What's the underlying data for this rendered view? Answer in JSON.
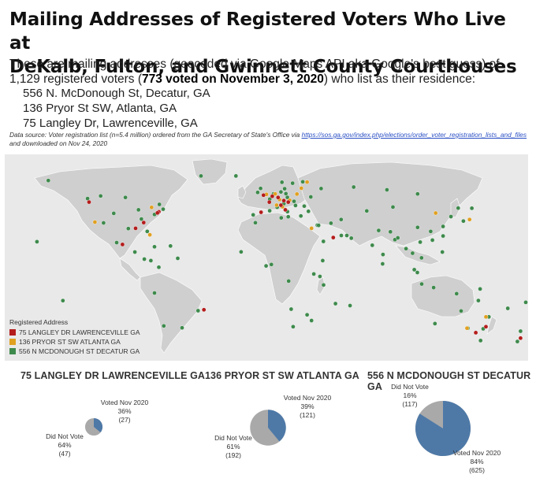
{
  "header": {
    "title_line1": "Mailing Addresses of Registered Voters Who Live at",
    "title_line2": "DeKalb, Fulton, and Gwinnett County Courthouses",
    "sub_pre": "These are mailing addresses (geocoded via Google Maps API aka Google's best guess) of 1,129 registered voters (",
    "sub_bold": "773 voted on November 3, 2020",
    "sub_post": ") who list as their residence:",
    "addresses": [
      "556 N. McDonough St, Decatur, GA",
      "136 Pryor St SW, Atlanta, GA",
      "75 Langley Dr, Lawrenceville, GA"
    ],
    "source_pre": "Data source: Voter registration list (n=5.4 million) ordered from the GA Secretary of State's Office via ",
    "source_link": "https://sos.ga.gov/index.php/elections/order_voter_registration_lists_and_files",
    "source_post": " and downloaded on Nov 24, 2020"
  },
  "legend": {
    "title": "Registered Address",
    "items": [
      {
        "label": "75 LANGLEY DR LAWRENCEVILLE GA",
        "color": "#b41c1c"
      },
      {
        "label": "136 PRYOR ST SW ATLANTA GA",
        "color": "#e0a020"
      },
      {
        "label": "556 N MCDONOUGH ST DECATUR GA",
        "color": "#3e8a4c"
      }
    ]
  },
  "colors": {
    "land": "#cfcfcf",
    "ocean": "#e9e9e9",
    "voted": "#4e79a7",
    "did_not_vote": "#a9a9a9"
  },
  "map_points": [
    {
      "group": "lawrenceville",
      "lon": -74,
      "lat": 40.7
    },
    {
      "group": "lawrenceville",
      "lon": -75,
      "lat": 40
    },
    {
      "group": "lawrenceville",
      "lon": -122,
      "lat": 47
    },
    {
      "group": "lawrenceville",
      "lon": -84.4,
      "lat": 33.7
    },
    {
      "group": "lawrenceville",
      "lon": -90,
      "lat": 30
    },
    {
      "group": "lawrenceville",
      "lon": -99,
      "lat": 19.5
    },
    {
      "group": "lawrenceville",
      "lon": -2,
      "lat": 51.5
    },
    {
      "group": "lawrenceville",
      "lon": 4,
      "lat": 50.8
    },
    {
      "group": "lawrenceville",
      "lon": 8,
      "lat": 50
    },
    {
      "group": "lawrenceville",
      "lon": 12,
      "lat": 48
    },
    {
      "group": "lawrenceville",
      "lon": 2,
      "lat": 47
    },
    {
      "group": "lawrenceville",
      "lon": 13,
      "lat": 42
    },
    {
      "group": "lawrenceville",
      "lon": 10,
      "lat": 45
    },
    {
      "group": "lawrenceville",
      "lon": 15,
      "lat": 47
    },
    {
      "group": "lawrenceville",
      "lon": -3.7,
      "lat": 40.4
    },
    {
      "group": "lawrenceville",
      "lon": 46,
      "lat": 24
    },
    {
      "group": "lawrenceville",
      "lon": -43,
      "lat": -22.9
    },
    {
      "group": "lawrenceville",
      "lon": 151,
      "lat": -33.9
    },
    {
      "group": "lawrenceville",
      "lon": 144,
      "lat": -37.8
    },
    {
      "group": "lawrenceville",
      "lon": 174.8,
      "lat": -41.3
    },
    {
      "group": "pryor",
      "lon": -79,
      "lat": 43.6
    },
    {
      "group": "pryor",
      "lon": -118,
      "lat": 34
    },
    {
      "group": "pryor",
      "lon": -80.2,
      "lat": 25.8
    },
    {
      "group": "pryor",
      "lon": 0,
      "lat": 52
    },
    {
      "group": "pryor",
      "lon": 6,
      "lat": 52.3
    },
    {
      "group": "pryor",
      "lon": 16,
      "lat": 48.2
    },
    {
      "group": "pryor",
      "lon": 9,
      "lat": 48.7
    },
    {
      "group": "pryor",
      "lon": 21,
      "lat": 52.2
    },
    {
      "group": "pryor",
      "lon": 24,
      "lat": 56
    },
    {
      "group": "pryor",
      "lon": 28,
      "lat": 60
    },
    {
      "group": "pryor",
      "lon": 11,
      "lat": 44
    },
    {
      "group": "pryor",
      "lon": 7,
      "lat": 45
    },
    {
      "group": "pryor",
      "lon": 31,
      "lat": 30
    },
    {
      "group": "pryor",
      "lon": 139.7,
      "lat": 35.7
    },
    {
      "group": "pryor",
      "lon": 138,
      "lat": -34.9
    },
    {
      "group": "pryor",
      "lon": 116.4,
      "lat": 39.9
    },
    {
      "group": "pryor",
      "lon": 151,
      "lat": -27.5
    },
    {
      "group": "decatur",
      "lon": -123,
      "lat": 49.3
    },
    {
      "group": "decatur",
      "lon": -114,
      "lat": 51
    },
    {
      "group": "decatur",
      "lon": -97,
      "lat": 50
    },
    {
      "group": "decatur",
      "lon": -73.6,
      "lat": 45.5
    },
    {
      "group": "decatur",
      "lon": -88,
      "lat": 42
    },
    {
      "group": "decatur",
      "lon": -105,
      "lat": 39.7
    },
    {
      "group": "decatur",
      "lon": -95,
      "lat": 29.8
    },
    {
      "group": "decatur",
      "lon": -112,
      "lat": 33.5
    },
    {
      "group": "decatur",
      "lon": -86,
      "lat": 36
    },
    {
      "group": "decatur",
      "lon": -77,
      "lat": 39
    },
    {
      "group": "decatur",
      "lon": -71,
      "lat": 42.4
    },
    {
      "group": "decatur",
      "lon": -82,
      "lat": 28
    },
    {
      "group": "decatur",
      "lon": -103,
      "lat": 20.7
    },
    {
      "group": "decatur",
      "lon": -90.5,
      "lat": 14.6
    },
    {
      "group": "decatur",
      "lon": -84,
      "lat": 10
    },
    {
      "group": "decatur",
      "lon": -77,
      "lat": 18
    },
    {
      "group": "decatur",
      "lon": -66,
      "lat": 18.5
    },
    {
      "group": "decatur",
      "lon": -74,
      "lat": 4.7
    },
    {
      "group": "decatur",
      "lon": -79.5,
      "lat": 9
    },
    {
      "group": "decatur",
      "lon": -61,
      "lat": 10.5
    },
    {
      "group": "decatur",
      "lon": -77,
      "lat": -12
    },
    {
      "group": "decatur",
      "lon": -47,
      "lat": -23.5
    },
    {
      "group": "decatur",
      "lon": -58,
      "lat": -34.6
    },
    {
      "group": "decatur",
      "lon": -70.6,
      "lat": -33.4
    },
    {
      "group": "decatur",
      "lon": -150,
      "lat": 61
    },
    {
      "group": "decatur",
      "lon": -157.8,
      "lat": 21.3
    },
    {
      "group": "decatur",
      "lon": -140,
      "lat": -17
    },
    {
      "group": "decatur",
      "lon": -45,
      "lat": 64
    },
    {
      "group": "decatur",
      "lon": -21,
      "lat": 64
    },
    {
      "group": "decatur",
      "lon": -6,
      "lat": 53.3
    },
    {
      "group": "decatur",
      "lon": -4,
      "lat": 55.9
    },
    {
      "group": "decatur",
      "lon": 2.3,
      "lat": 48.9
    },
    {
      "group": "decatur",
      "lon": 4.9,
      "lat": 52.4
    },
    {
      "group": "decatur",
      "lon": 10,
      "lat": 53.6
    },
    {
      "group": "decatur",
      "lon": 13.4,
      "lat": 52.5
    },
    {
      "group": "decatur",
      "lon": 12.5,
      "lat": 55.7
    },
    {
      "group": "decatur",
      "lon": 18,
      "lat": 59.3
    },
    {
      "group": "decatur",
      "lon": 10.7,
      "lat": 59.9
    },
    {
      "group": "decatur",
      "lon": 25,
      "lat": 60.2
    },
    {
      "group": "decatur",
      "lon": 37.6,
      "lat": 55.8
    },
    {
      "group": "decatur",
      "lon": 30.5,
      "lat": 50.4
    },
    {
      "group": "decatur",
      "lon": 14.4,
      "lat": 50.1
    },
    {
      "group": "decatur",
      "lon": 19,
      "lat": 47.5
    },
    {
      "group": "decatur",
      "lon": 23.7,
      "lat": 38
    },
    {
      "group": "decatur",
      "lon": 28.9,
      "lat": 41
    },
    {
      "group": "decatur",
      "lon": -9.1,
      "lat": 38.7
    },
    {
      "group": "decatur",
      "lon": 2.2,
      "lat": 41.4
    },
    {
      "group": "decatur",
      "lon": 7.4,
      "lat": 43.7
    },
    {
      "group": "decatur",
      "lon": 12,
      "lat": 46
    },
    {
      "group": "decatur",
      "lon": 14.5,
      "lat": 40.8
    },
    {
      "group": "decatur",
      "lon": 15,
      "lat": 37.5
    },
    {
      "group": "decatur",
      "lon": 20,
      "lat": 44.8
    },
    {
      "group": "decatur",
      "lon": 26,
      "lat": 44.4
    },
    {
      "group": "decatur",
      "lon": 35,
      "lat": 32
    },
    {
      "group": "decatur",
      "lon": 35.9,
      "lat": 31.9
    },
    {
      "group": "decatur",
      "lon": 44.4,
      "lat": 33.3
    },
    {
      "group": "decatur",
      "lon": 51.4,
      "lat": 35.7
    },
    {
      "group": "decatur",
      "lon": 55.3,
      "lat": 25.3
    },
    {
      "group": "decatur",
      "lon": 51.5,
      "lat": 25.3
    },
    {
      "group": "decatur",
      "lon": 58.4,
      "lat": 23.6
    },
    {
      "group": "decatur",
      "lon": 39.2,
      "lat": 21.5
    },
    {
      "group": "decatur",
      "lon": 3.4,
      "lat": 6.5
    },
    {
      "group": "decatur",
      "lon": -0.2,
      "lat": 5.6
    },
    {
      "group": "decatur",
      "lon": -17.4,
      "lat": 14.7
    },
    {
      "group": "decatur",
      "lon": -7.6,
      "lat": 33.6
    },
    {
      "group": "decatur",
      "lon": 10.2,
      "lat": 36.8
    },
    {
      "group": "decatur",
      "lon": 38.7,
      "lat": 9
    },
    {
      "group": "decatur",
      "lon": 36.8,
      "lat": -1.3
    },
    {
      "group": "decatur",
      "lon": 32.6,
      "lat": 0.3
    },
    {
      "group": "decatur",
      "lon": 39.3,
      "lat": -6.8
    },
    {
      "group": "decatur",
      "lon": 15.3,
      "lat": -4.3
    },
    {
      "group": "decatur",
      "lon": 28,
      "lat": -26.2
    },
    {
      "group": "decatur",
      "lon": 31,
      "lat": -29.9
    },
    {
      "group": "decatur",
      "lon": 18.4,
      "lat": -33.9
    },
    {
      "group": "decatur",
      "lon": 17,
      "lat": -22.5
    },
    {
      "group": "decatur",
      "lon": 47.5,
      "lat": -18.9
    },
    {
      "group": "decatur",
      "lon": 57.5,
      "lat": -20.2
    },
    {
      "group": "decatur",
      "lon": 72.8,
      "lat": 19
    },
    {
      "group": "decatur",
      "lon": 77.2,
      "lat": 28.6
    },
    {
      "group": "decatur",
      "lon": 80.2,
      "lat": 13
    },
    {
      "group": "decatur",
      "lon": 88.4,
      "lat": 22.6
    },
    {
      "group": "decatur",
      "lon": 90.4,
      "lat": 23.8
    },
    {
      "group": "decatur",
      "lon": 85.3,
      "lat": 27.7
    },
    {
      "group": "decatur",
      "lon": 79.9,
      "lat": 6.9
    },
    {
      "group": "decatur",
      "lon": 96,
      "lat": 16.8
    },
    {
      "group": "decatur",
      "lon": 100.5,
      "lat": 13.8
    },
    {
      "group": "decatur",
      "lon": 105.8,
      "lat": 21
    },
    {
      "group": "decatur",
      "lon": 106.7,
      "lat": 10.8
    },
    {
      "group": "decatur",
      "lon": 101.7,
      "lat": 3.1
    },
    {
      "group": "decatur",
      "lon": 103.8,
      "lat": 1.3
    },
    {
      "group": "decatur",
      "lon": 106.8,
      "lat": -6.2
    },
    {
      "group": "decatur",
      "lon": 115,
      "lat": -8.5
    },
    {
      "group": "decatur",
      "lon": 121,
      "lat": 14.6
    },
    {
      "group": "decatur",
      "lon": 114.2,
      "lat": 22.3
    },
    {
      "group": "decatur",
      "lon": 121.5,
      "lat": 25
    },
    {
      "group": "decatur",
      "lon": 121.5,
      "lat": 31.2
    },
    {
      "group": "decatur",
      "lon": 126.9,
      "lat": 37.6
    },
    {
      "group": "decatur",
      "lon": 135.5,
      "lat": 34.7
    },
    {
      "group": "decatur",
      "lon": 141.3,
      "lat": 43
    },
    {
      "group": "decatur",
      "lon": 113,
      "lat": 28
    },
    {
      "group": "decatur",
      "lon": 104,
      "lat": 30.6
    },
    {
      "group": "decatur",
      "lon": 87,
      "lat": 43.8
    },
    {
      "group": "decatur",
      "lon": 69,
      "lat": 41.3
    },
    {
      "group": "decatur",
      "lon": 60,
      "lat": 56.8
    },
    {
      "group": "decatur",
      "lon": 82.9,
      "lat": 55
    },
    {
      "group": "decatur",
      "lon": 104,
      "lat": 52.3
    },
    {
      "group": "decatur",
      "lon": 131.9,
      "lat": 43.1
    },
    {
      "group": "decatur",
      "lon": 115.9,
      "lat": -31.9
    },
    {
      "group": "decatur",
      "lon": 130.8,
      "lat": -12.5
    },
    {
      "group": "decatur",
      "lon": 145.8,
      "lat": -16.9
    },
    {
      "group": "decatur",
      "lon": 153,
      "lat": -27.5
    },
    {
      "group": "decatur",
      "lon": 149.1,
      "lat": -35.3
    },
    {
      "group": "decatur",
      "lon": 147.3,
      "lat": -42.9
    },
    {
      "group": "decatur",
      "lon": 138.6,
      "lat": -34.9
    },
    {
      "group": "decatur",
      "lon": 133.9,
      "lat": -23.7
    },
    {
      "group": "decatur",
      "lon": 174.8,
      "lat": -36.8
    },
    {
      "group": "decatur",
      "lon": 172.6,
      "lat": -43.5
    },
    {
      "group": "decatur",
      "lon": 178.4,
      "lat": -18.1
    },
    {
      "group": "decatur",
      "lon": 166,
      "lat": -22
    },
    {
      "group": "decatur",
      "lon": 147,
      "lat": -9.4
    }
  ],
  "pie_charts": [
    {
      "title": "75 LANGLEY DR LAWRENCEVILLE GA",
      "total": 74,
      "voted": {
        "label": "Voted Nov 2020",
        "pct": "36%",
        "count": "(27)",
        "fraction": 0.36
      },
      "not_voted": {
        "label": "Did Not Vote",
        "pct": "64%",
        "count": "(47)",
        "fraction": 0.64
      }
    },
    {
      "title": "136 PRYOR ST SW ATLANTA GA",
      "total": 313,
      "voted": {
        "label": "Voted Nov 2020",
        "pct": "39%",
        "count": "(121)",
        "fraction": 0.39
      },
      "not_voted": {
        "label": "Did Not Vote",
        "pct": "61%",
        "count": "(192)",
        "fraction": 0.61
      }
    },
    {
      "title": "556 N MCDONOUGH ST DECATUR GA",
      "total": 742,
      "voted": {
        "label": "Voted Nov 2020",
        "pct": "84%",
        "count": "(625)",
        "fraction": 0.84
      },
      "not_voted": {
        "label": "Did Not Vote",
        "pct": "16%",
        "count": "(117)",
        "fraction": 0.16
      }
    }
  ]
}
